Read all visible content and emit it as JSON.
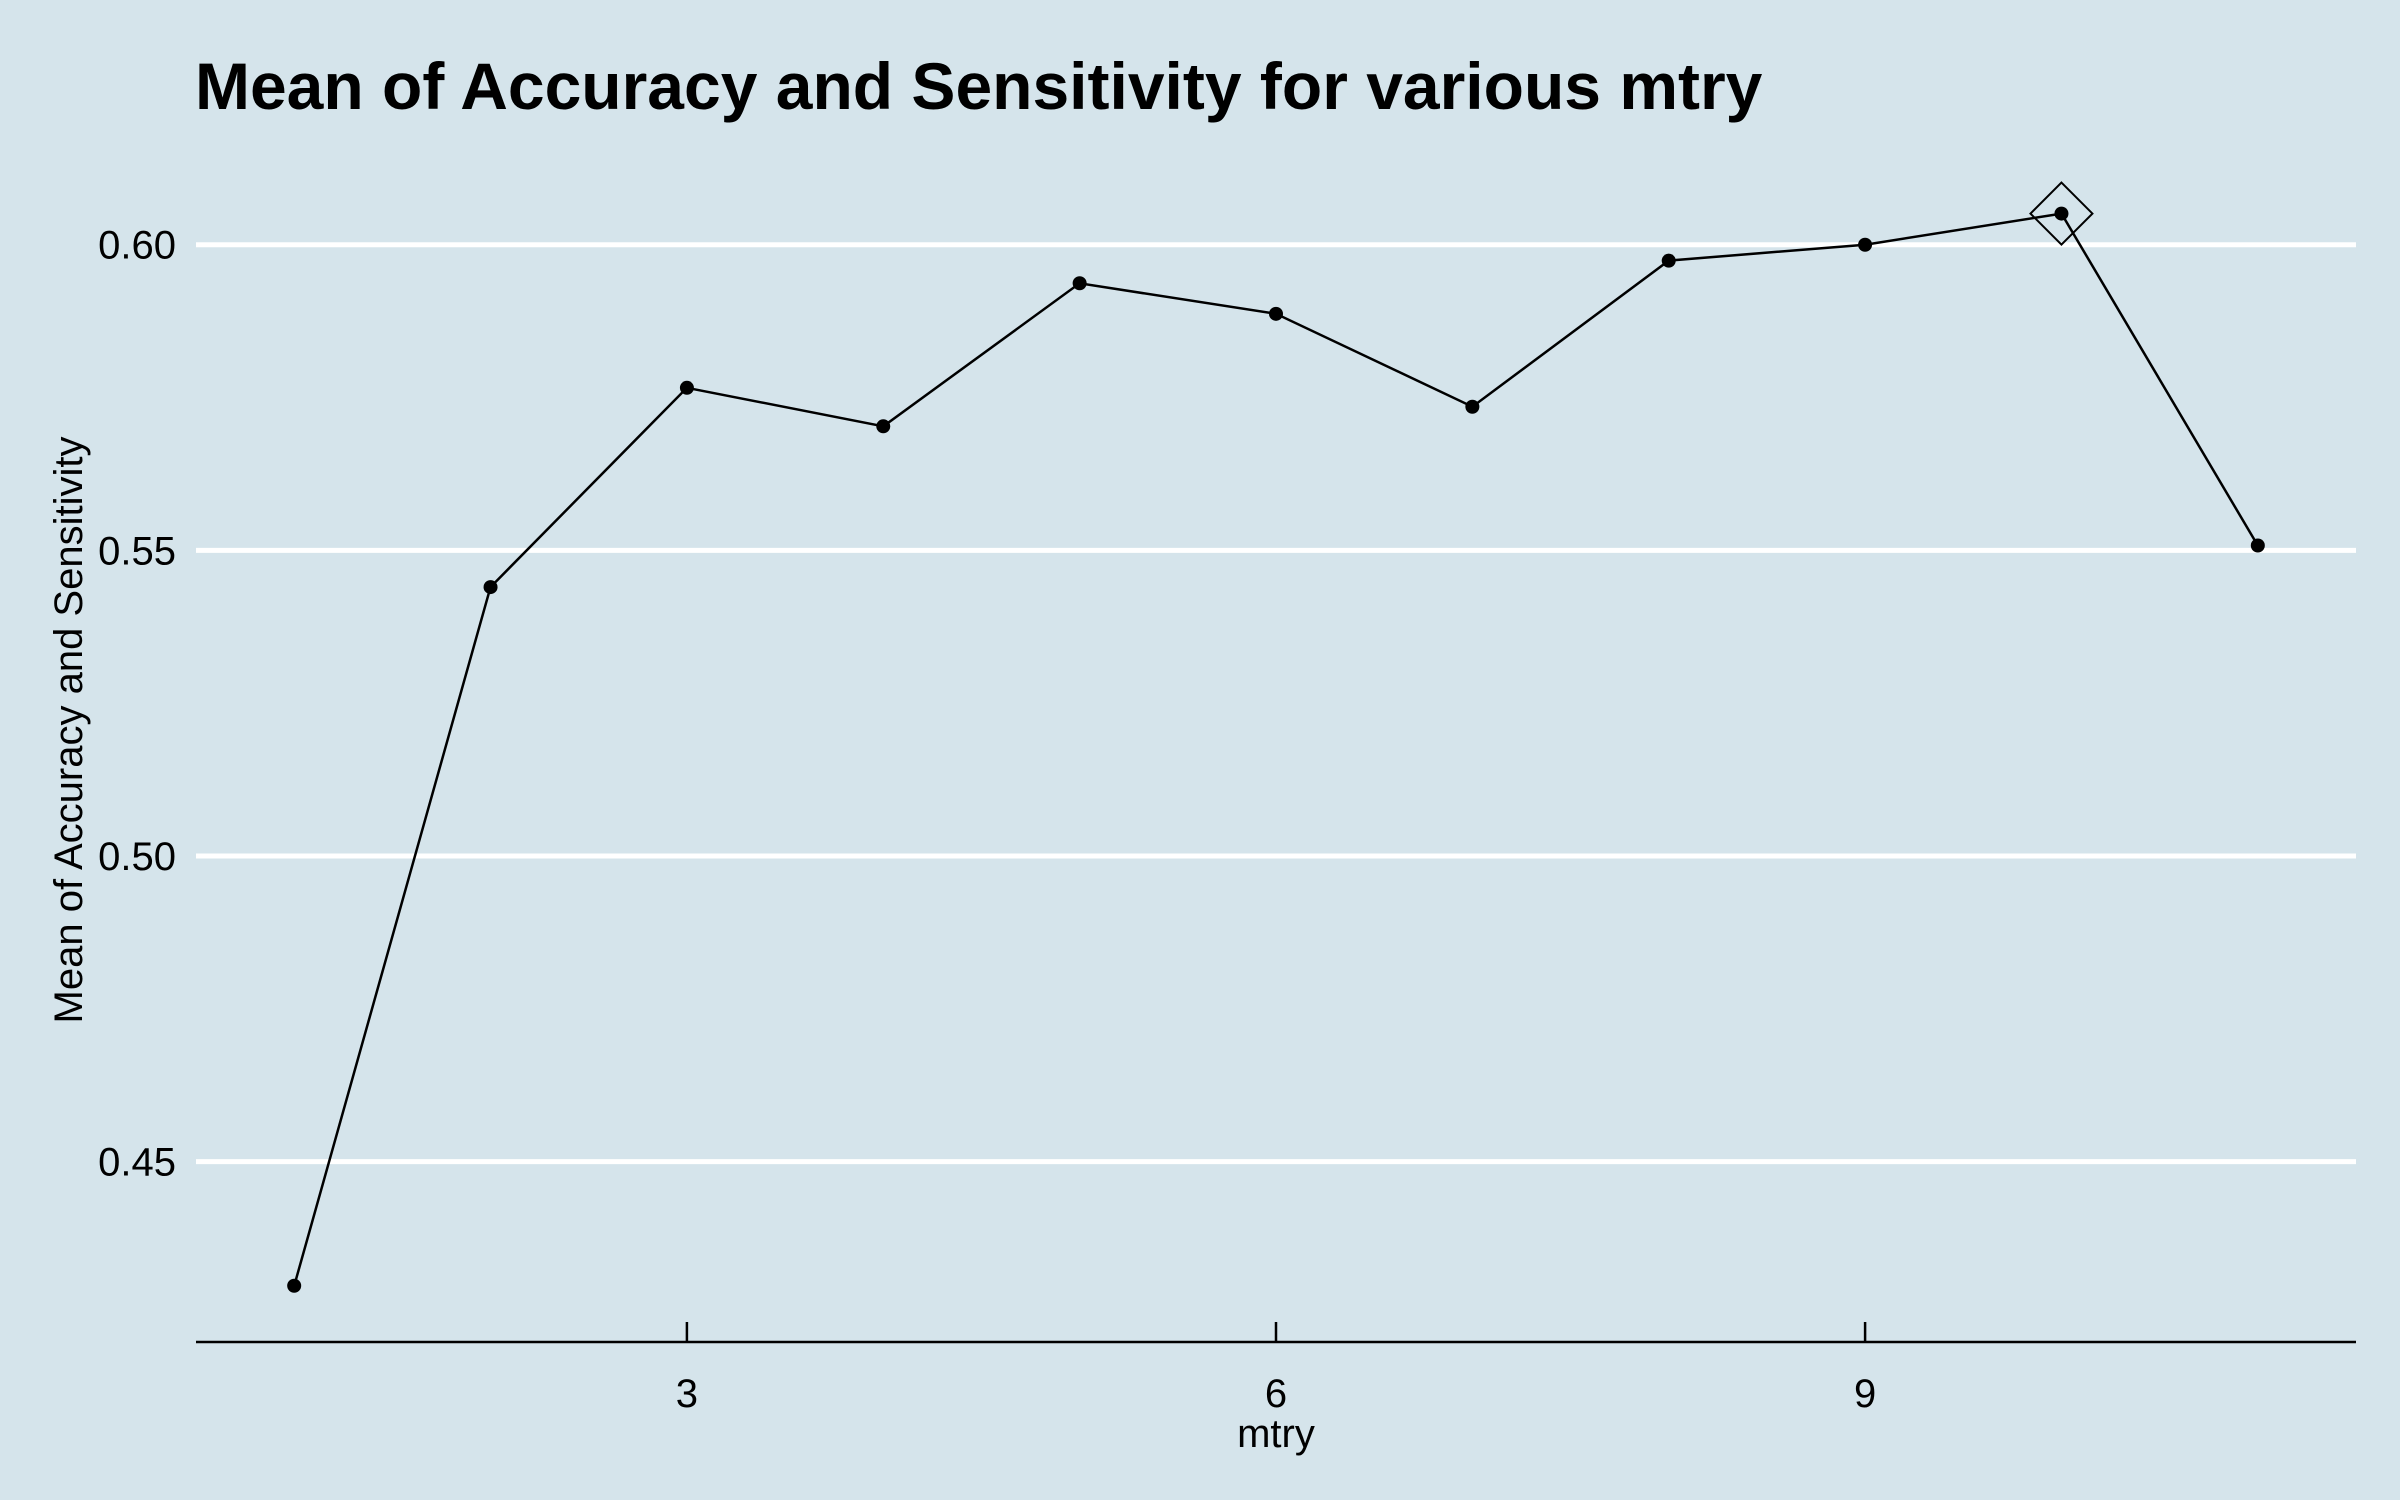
{
  "chart_data": {
    "type": "line",
    "title": "Mean of Accuracy and Sensitivity for various mtry",
    "xlabel": "mtry",
    "ylabel": "Mean of Accuracy and Sensitivity",
    "x": [
      1,
      2,
      3,
      4,
      5,
      6,
      7,
      8,
      9,
      10,
      11
    ],
    "series": [
      {
        "values": [
          0.4297,
          0.544,
          0.5766,
          0.5703,
          0.5937,
          0.5887,
          0.5735,
          0.5974,
          0.6,
          0.6051,
          0.5508
        ]
      }
    ],
    "highlight": {
      "x": 10,
      "y": 0.6051,
      "marker": "diamond"
    },
    "xticks": [
      3,
      6,
      9
    ],
    "yticks": [
      0.45,
      0.5,
      0.55,
      0.6
    ],
    "ytick_labels": [
      "0.45",
      "0.50",
      "0.55",
      "0.60"
    ],
    "xlim": [
      0.5,
      11.5
    ],
    "ylim": [
      0.4205,
      0.6155
    ],
    "grid": "horizontal-major",
    "legend": "none",
    "colors": {
      "background": "#d5e4eb",
      "grid": "#ffffff",
      "line": "#000000",
      "axis": "#000000"
    }
  }
}
